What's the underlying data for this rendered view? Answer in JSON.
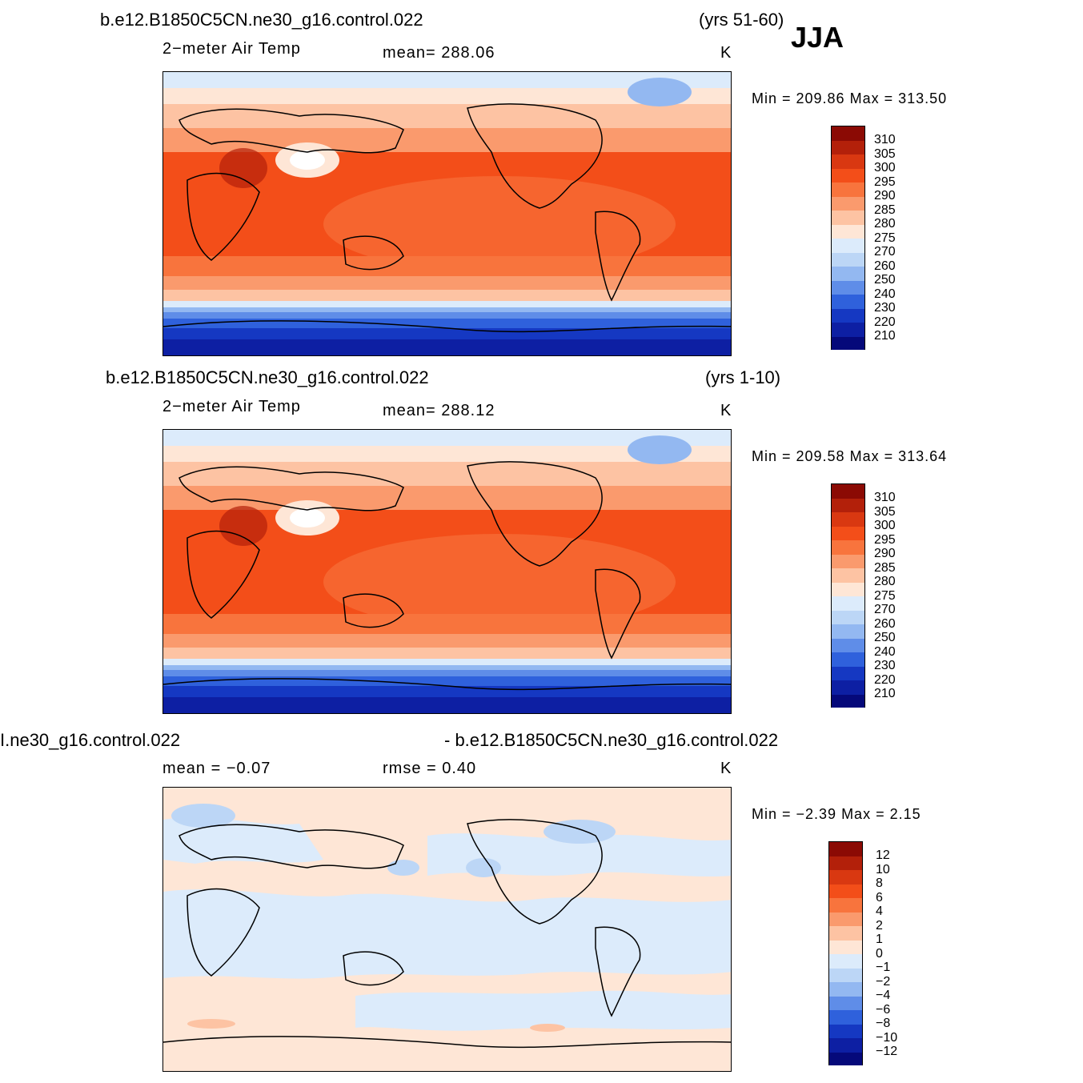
{
  "season": "JJA",
  "panels": [
    {
      "case_title": "b.e12.B1850C5CN.ne30_g16.control.022",
      "years": "(yrs 51-60)",
      "variable": "2−meter Air Temp",
      "stat": "mean=  288.06",
      "units": "K",
      "minmax": "Min  =  209.86  Max  =  313.50",
      "levels": [
        "310",
        "305",
        "300",
        "295",
        "290",
        "285",
        "280",
        "275",
        "270",
        "260",
        "250",
        "240",
        "230",
        "220",
        "210"
      ]
    },
    {
      "case_title": "b.e12.B1850C5CN.ne30_g16.control.022",
      "years": "(yrs 1-10)",
      "variable": "2−meter Air Temp",
      "stat": "mean=  288.12",
      "units": "K",
      "minmax": "Min  =  209.58  Max  =  313.64",
      "levels": [
        "310",
        "305",
        "300",
        "295",
        "290",
        "285",
        "280",
        "275",
        "270",
        "260",
        "250",
        "240",
        "230",
        "220",
        "210"
      ]
    },
    {
      "case_left": "I.ne30_g16.control.022",
      "case_right": "- b.e12.B1850C5CN.ne30_g16.control.022",
      "stat_mean": "mean  =     −0.07",
      "stat_rmse": "rmse  =      0.40",
      "units": "K",
      "minmax": "Min  =    −2.39  Max  =      2.15",
      "levels": [
        "12",
        "10",
        "8",
        "6",
        "4",
        "2",
        "1",
        "0",
        "−1",
        "−2",
        "−4",
        "−6",
        "−8",
        "−10",
        "−12"
      ]
    }
  ],
  "colors": {
    "abs_scale": [
      "#8b0a04",
      "#b3200a",
      "#d93811",
      "#f34e19",
      "#f8743d",
      "#fa9a6d",
      "#fdc3a3",
      "#fee6d6",
      "#dcebfb",
      "#bcd6f6",
      "#93b8f1",
      "#5f8de8",
      "#2f61dc",
      "#1538c2",
      "#0d1fa3",
      "#05097a"
    ],
    "diff_scale": [
      "#8b0a04",
      "#b3200a",
      "#d93811",
      "#f34e19",
      "#f8743d",
      "#fa9a6d",
      "#fdc3a3",
      "#fee6d6",
      "#dcebfb",
      "#bcd6f6",
      "#93b8f1",
      "#5f8de8",
      "#2f61dc",
      "#1538c2",
      "#0d1fa3",
      "#05097a"
    ]
  }
}
